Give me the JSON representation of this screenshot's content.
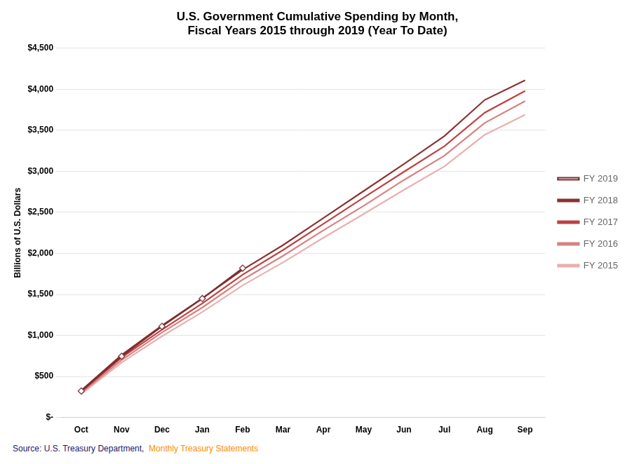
{
  "chart_data": {
    "type": "line",
    "title": "U.S. Government Cumulative Spending by Month,\nFiscal Years 2015 through 2019 (Year To Date)",
    "y_label": "Billions of U.S. Dollars",
    "categories": [
      "Oct",
      "Nov",
      "Dec",
      "Jan",
      "Feb",
      "Mar",
      "Apr",
      "May",
      "Jun",
      "Jul",
      "Aug",
      "Sep"
    ],
    "series": [
      {
        "name": "FY 2019",
        "color": "#7B2D2D",
        "marker": "diamond",
        "values": [
          322,
          746,
          1110,
          1449,
          1820,
          null,
          null,
          null,
          null,
          null,
          null,
          null
        ]
      },
      {
        "name": "FY 2018",
        "color": "#8B3232",
        "marker": "none",
        "values": [
          329,
          762,
          1120,
          1452,
          1800,
          2100,
          2430,
          2760,
          3090,
          3430,
          3870,
          4110
        ]
      },
      {
        "name": "FY 2017",
        "color": "#C04040",
        "marker": "none",
        "values": [
          315,
          730,
          1070,
          1390,
          1740,
          2040,
          2360,
          2680,
          2995,
          3305,
          3715,
          3980
        ]
      },
      {
        "name": "FY 2016",
        "color": "#D88080",
        "marker": "none",
        "values": [
          300,
          700,
          1035,
          1340,
          1680,
          1970,
          2280,
          2580,
          2895,
          3190,
          3590,
          3855
        ]
      },
      {
        "name": "FY 2015",
        "color": "#E8B0B0",
        "marker": "none",
        "values": [
          285,
          670,
          990,
          1285,
          1610,
          1890,
          2190,
          2480,
          2775,
          3060,
          3445,
          3688
        ]
      }
    ],
    "ylim": [
      0,
      4500
    ],
    "yticks": [
      {
        "value": 0,
        "label": "$-"
      },
      {
        "value": 500,
        "label": "$500"
      },
      {
        "value": 1000,
        "label": "$1,000"
      },
      {
        "value": 1500,
        "label": "$1,500"
      },
      {
        "value": 2000,
        "label": "$2,000"
      },
      {
        "value": 2500,
        "label": "$2,500"
      },
      {
        "value": 3000,
        "label": "$3,000"
      },
      {
        "value": 3500,
        "label": "$3,500"
      },
      {
        "value": 4000,
        "label": "$4,000"
      },
      {
        "value": 4500,
        "label": "$4,500"
      }
    ],
    "grid": true,
    "legend": "right",
    "annotations": [
      {
        "text": "Source: U.S. Treasury Department,  ",
        "color": "#1A1A6E"
      },
      {
        "text": "Monthly Treasury Statements",
        "color": "#FF8C00"
      }
    ]
  }
}
